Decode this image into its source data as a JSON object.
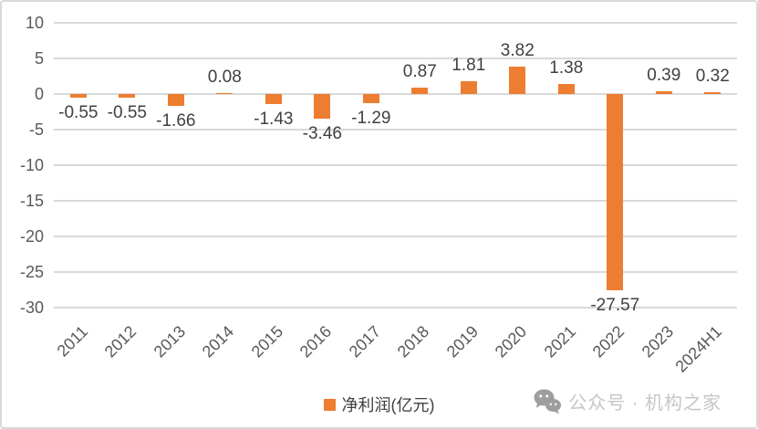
{
  "chart_data": {
    "type": "bar",
    "title": "",
    "xlabel": "",
    "ylabel": "",
    "categories": [
      "2011",
      "2012",
      "2013",
      "2014",
      "2015",
      "2016",
      "2017",
      "2018",
      "2019",
      "2020",
      "2021",
      "2022",
      "2023",
      "2024H1"
    ],
    "values": [
      -0.55,
      -0.55,
      -1.66,
      0.08,
      -1.43,
      -3.46,
      -1.29,
      0.87,
      1.81,
      3.82,
      1.38,
      -27.57,
      0.39,
      0.32
    ],
    "data_labels": [
      "-0.55",
      "-0.55",
      "-1.66",
      "0.08",
      "-1.43",
      "-3.46",
      "-1.29",
      "0.87",
      "1.81",
      "3.82",
      "1.38",
      "-27.57",
      "0.39",
      "0.32"
    ],
    "legend_label": "净利润(亿元)",
    "legend_position": "bottom",
    "ylim": [
      -30,
      10
    ],
    "yticks": [
      10,
      5,
      0,
      -5,
      -10,
      -15,
      -20,
      -25,
      -30
    ],
    "grid": true,
    "bar_color": "#ed7d31",
    "gridline_color": "#d9d9d9",
    "tick_text_color": "#595959",
    "label_text_color": "#404040"
  },
  "watermark": {
    "icon": "wechat-icon",
    "text": "公众号 · 机构之家",
    "text_color": "#c6c6c6",
    "icon_color": "#9e9e9e"
  }
}
